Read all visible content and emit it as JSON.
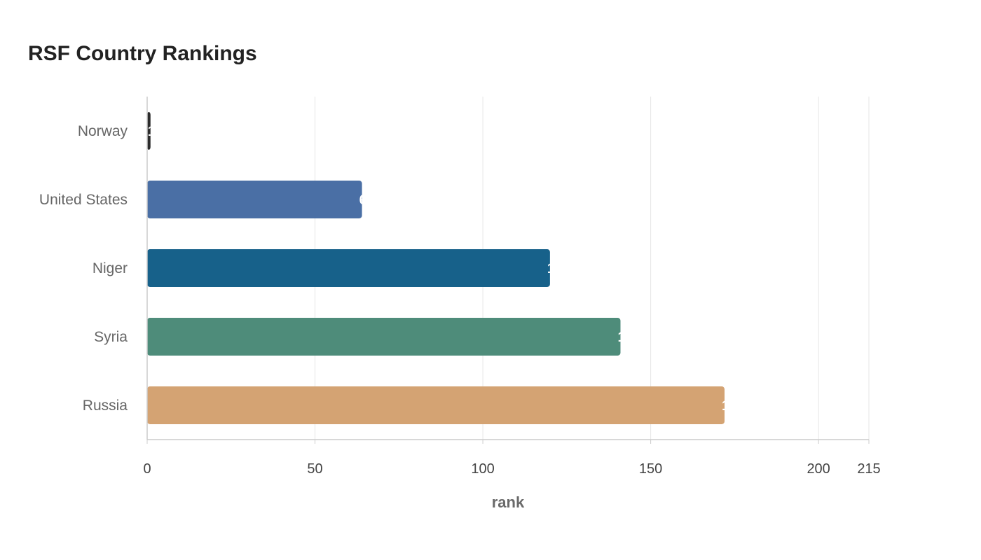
{
  "chart_data": {
    "type": "bar",
    "orientation": "horizontal",
    "title": "RSF Country Rankings",
    "xlabel": "rank",
    "ylabel": "",
    "xlim": [
      0,
      215
    ],
    "xticks": [
      0,
      50,
      100,
      150,
      200,
      215
    ],
    "categories": [
      "Norway",
      "United States",
      "Niger",
      "Syria",
      "Russia"
    ],
    "values": [
      1,
      64,
      120,
      141,
      172
    ],
    "colors": [
      "#2b2b2b",
      "#4a6fa5",
      "#17618a",
      "#4e8c7a",
      "#d4a373"
    ],
    "grid": true,
    "legend": "none"
  }
}
